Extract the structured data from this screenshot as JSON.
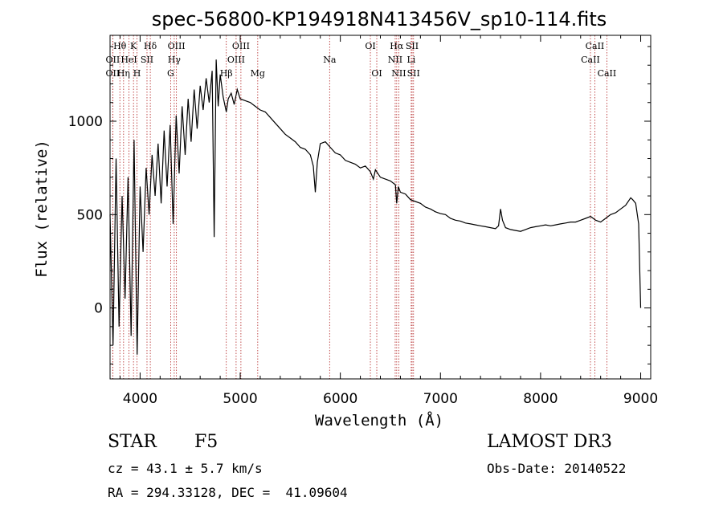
{
  "chart_data": {
    "type": "line",
    "title": "spec-56800-KP194918N413456V_sp10-114.fits",
    "xlabel": "Wavelength (Å)",
    "ylabel": "Flux (relative)",
    "xlim": [
      3700,
      9100
    ],
    "ylim": [
      -380,
      1460
    ],
    "x_ticks": [
      4000,
      5000,
      6000,
      7000,
      8000,
      9000
    ],
    "y_ticks": [
      0,
      500,
      1000
    ],
    "grid": false,
    "series": [
      {
        "name": "flux",
        "x": [
          3700,
          3730,
          3760,
          3790,
          3820,
          3850,
          3880,
          3910,
          3940,
          3970,
          4000,
          4030,
          4060,
          4090,
          4120,
          4150,
          4180,
          4210,
          4240,
          4270,
          4300,
          4330,
          4360,
          4390,
          4420,
          4450,
          4480,
          4510,
          4540,
          4570,
          4600,
          4630,
          4660,
          4690,
          4720,
          4740,
          4760,
          4780,
          4800,
          4830,
          4861,
          4880,
          4910,
          4940,
          4970,
          5000,
          5050,
          5100,
          5150,
          5200,
          5250,
          5300,
          5350,
          5400,
          5450,
          5500,
          5550,
          5600,
          5650,
          5700,
          5730,
          5750,
          5770,
          5800,
          5850,
          5900,
          5950,
          6000,
          6050,
          6100,
          6150,
          6200,
          6250,
          6300,
          6330,
          6350,
          6400,
          6450,
          6500,
          6550,
          6563,
          6580,
          6600,
          6650,
          6700,
          6750,
          6800,
          6850,
          6900,
          6950,
          7000,
          7050,
          7100,
          7150,
          7200,
          7250,
          7300,
          7350,
          7400,
          7450,
          7500,
          7550,
          7580,
          7600,
          7620,
          7650,
          7700,
          7750,
          7800,
          7850,
          7900,
          7950,
          8000,
          8050,
          8100,
          8150,
          8200,
          8250,
          8300,
          8350,
          8400,
          8450,
          8500,
          8550,
          8600,
          8650,
          8700,
          8750,
          8800,
          8850,
          8900,
          8920,
          8950,
          8980,
          9000
        ],
        "values": [
          500,
          -200,
          800,
          -100,
          600,
          50,
          700,
          -150,
          900,
          -250,
          650,
          300,
          750,
          500,
          820,
          600,
          880,
          560,
          950,
          650,
          980,
          450,
          1030,
          720,
          1080,
          820,
          1120,
          890,
          1170,
          960,
          1190,
          1060,
          1230,
          1100,
          1270,
          380,
          1330,
          1080,
          1250,
          1130,
          1050,
          1120,
          1150,
          1090,
          1170,
          1120,
          1110,
          1100,
          1080,
          1060,
          1050,
          1020,
          990,
          960,
          930,
          910,
          890,
          860,
          850,
          820,
          760,
          620,
          780,
          880,
          890,
          860,
          830,
          820,
          790,
          780,
          770,
          750,
          760,
          730,
          690,
          740,
          700,
          690,
          680,
          660,
          560,
          650,
          620,
          610,
          580,
          570,
          560,
          540,
          530,
          515,
          505,
          500,
          480,
          470,
          465,
          455,
          450,
          445,
          440,
          435,
          430,
          425,
          440,
          530,
          470,
          430,
          420,
          415,
          410,
          420,
          430,
          435,
          440,
          445,
          440,
          445,
          450,
          455,
          460,
          460,
          470,
          480,
          490,
          470,
          460,
          480,
          500,
          510,
          530,
          550,
          590,
          580,
          560,
          450,
          0
        ]
      }
    ],
    "lines": [
      {
        "label": "Hθ",
        "x": 3798,
        "row": 1
      },
      {
        "label": "OII",
        "x": 3727,
        "row": 2
      },
      {
        "label": "OII",
        "x": 3727,
        "row": 3
      },
      {
        "label": "Hη",
        "x": 3835,
        "row": 3
      },
      {
        "label": "K",
        "x": 3934,
        "row": 1
      },
      {
        "label": "HeI",
        "x": 3889,
        "row": 2
      },
      {
        "label": "H",
        "x": 3969,
        "row": 3
      },
      {
        "label": "SII",
        "x": 4069,
        "row": 2
      },
      {
        "label": "Hδ",
        "x": 4102,
        "row": 1
      },
      {
        "label": "OIII",
        "x": 4363,
        "row": 1
      },
      {
        "label": "Hγ",
        "x": 4341,
        "row": 2
      },
      {
        "label": "G",
        "x": 4305,
        "row": 3
      },
      {
        "label": "Hβ",
        "x": 4861,
        "row": 3
      },
      {
        "label": "OIII",
        "x": 5007,
        "row": 1
      },
      {
        "label": "OIII",
        "x": 4959,
        "row": 2
      },
      {
        "label": "Mg",
        "x": 5175,
        "row": 3
      },
      {
        "label": "Na",
        "x": 5893,
        "row": 2
      },
      {
        "label": "OI",
        "x": 6300,
        "row": 1
      },
      {
        "label": "OI",
        "x": 6364,
        "row": 3
      },
      {
        "label": "Hα",
        "x": 6563,
        "row": 1
      },
      {
        "label": "NII",
        "x": 6548,
        "row": 2
      },
      {
        "label": "NII",
        "x": 6584,
        "row": 3
      },
      {
        "label": "SII",
        "x": 6717,
        "row": 1
      },
      {
        "label": "Li",
        "x": 6708,
        "row": 2
      },
      {
        "label": "SII",
        "x": 6731,
        "row": 3
      },
      {
        "label": "CaII",
        "x": 8542,
        "row": 1
      },
      {
        "label": "CaII",
        "x": 8498,
        "row": 2
      },
      {
        "label": "CaII",
        "x": 8662,
        "row": 3
      }
    ]
  },
  "info": {
    "class_label": "STAR",
    "subclass": "F5",
    "survey": "LAMOST DR3",
    "cz": "cz = 43.1 ± 5.7 km/s",
    "obs_date": "Obs-Date: 20140522",
    "coords": "RA = 294.33128, DEC =  41.09604"
  }
}
